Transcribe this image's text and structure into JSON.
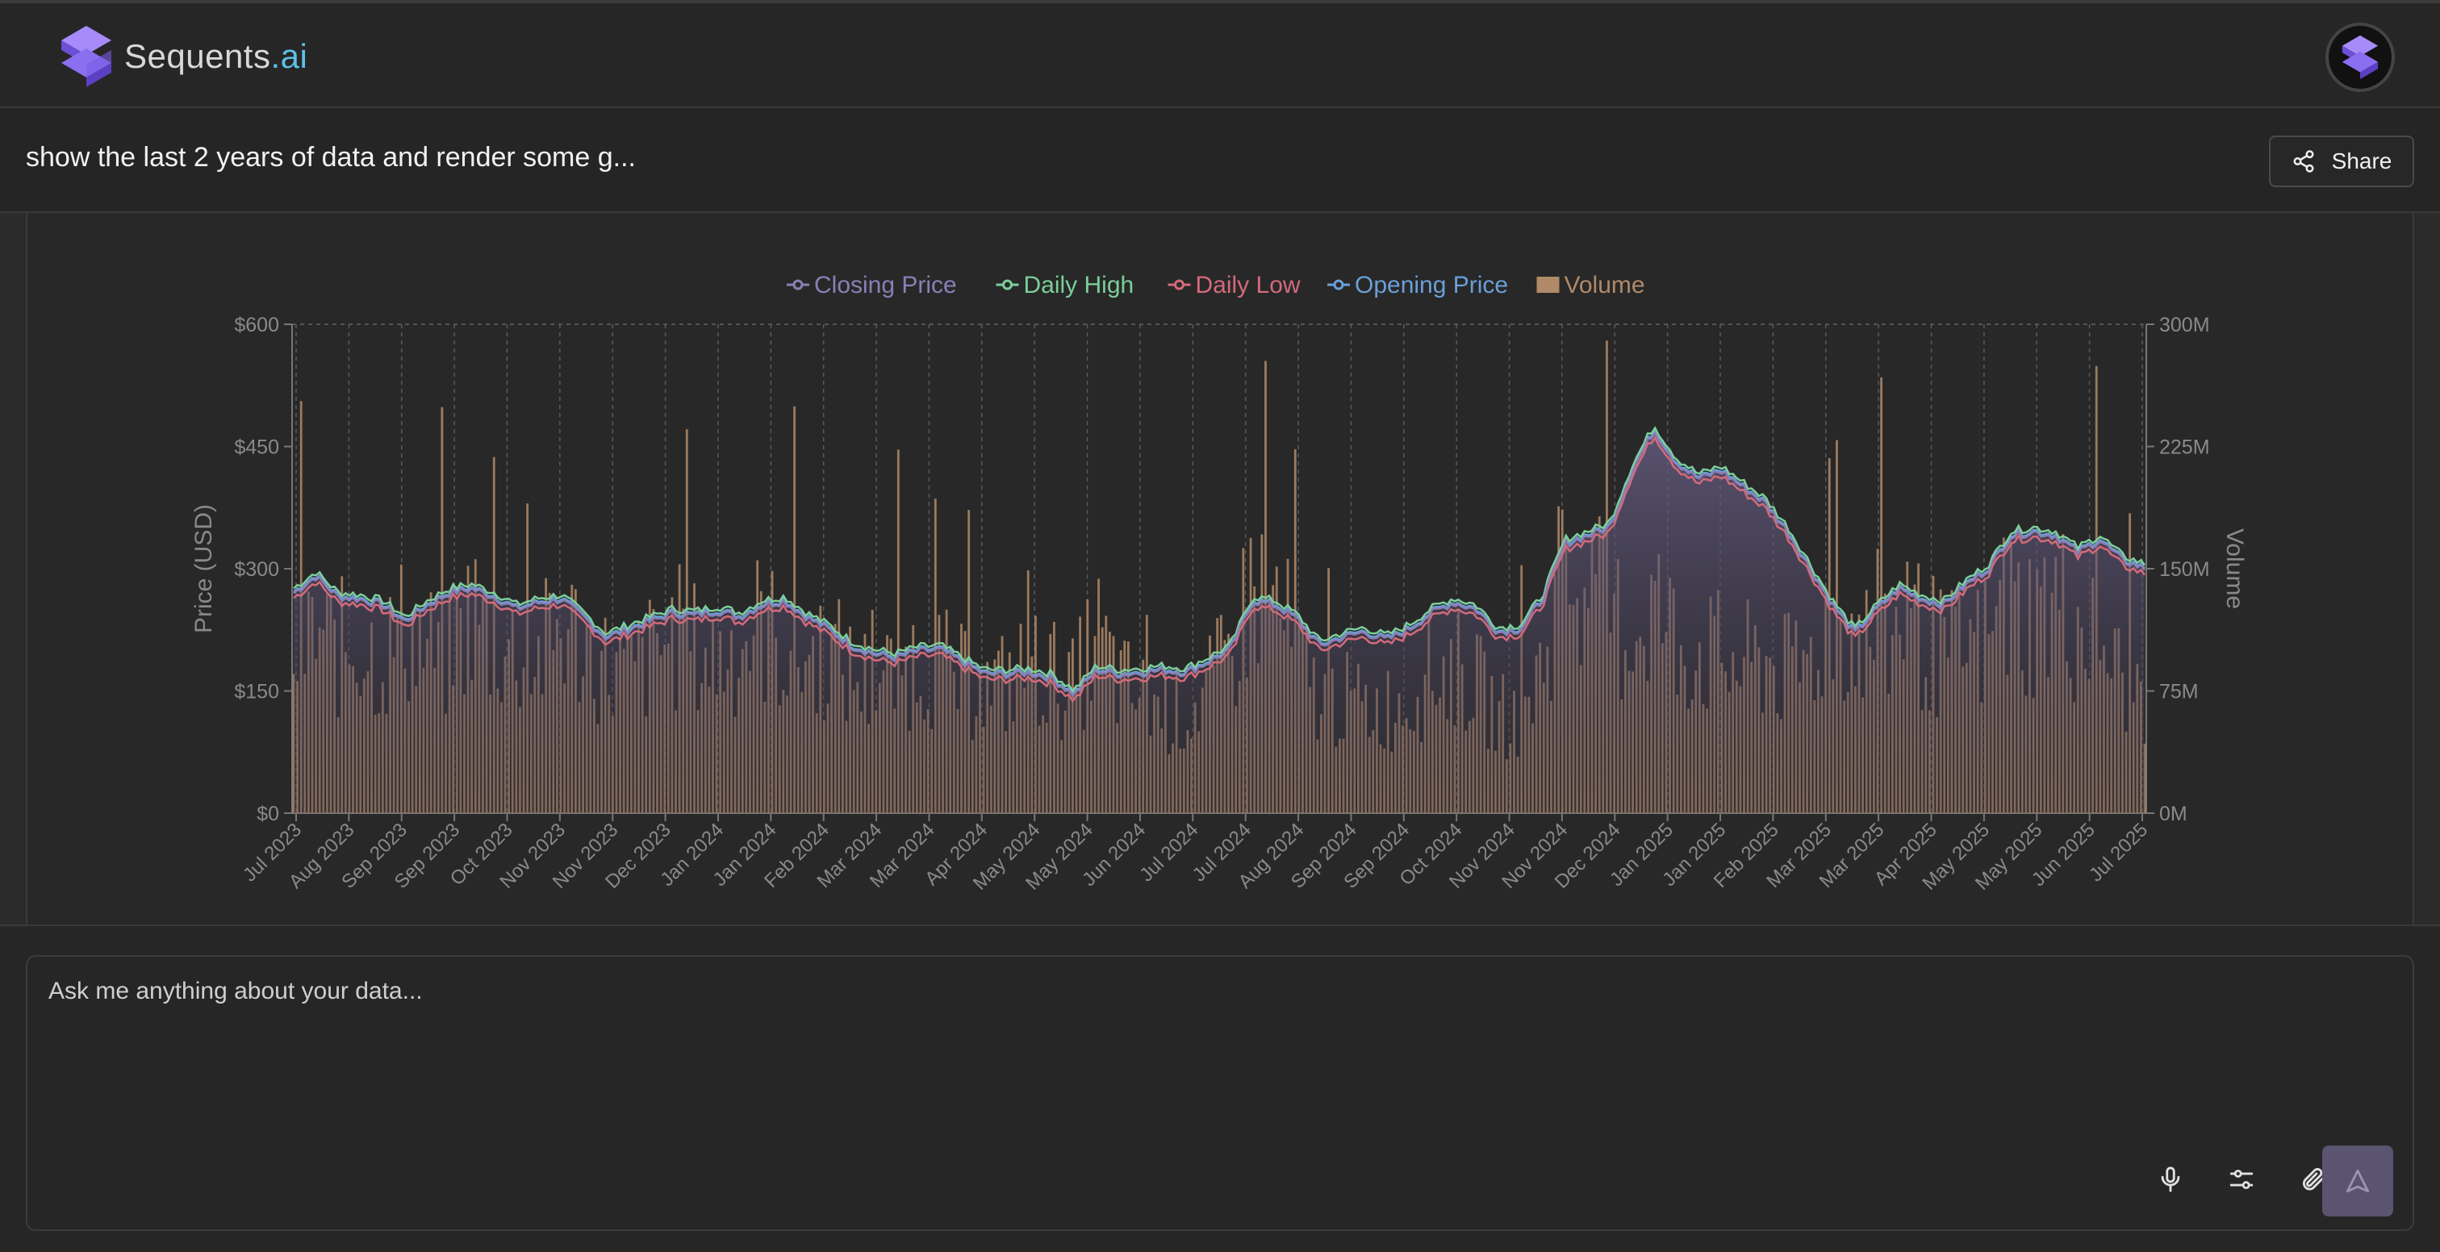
{
  "app": {
    "brand_main": "Sequents",
    "brand_suffix": ".ai"
  },
  "conversation": {
    "title": "show the last 2 years of data and render some g...",
    "share_label": "Share"
  },
  "input": {
    "placeholder": "Ask me anything about your data..."
  },
  "icons": {
    "mic": "microphone-icon",
    "settings": "sliders-icon",
    "attach": "paperclip-icon",
    "send": "send-icon",
    "share": "share-icon"
  },
  "colors": {
    "closing": "#8a7fb5",
    "high": "#7ccf9a",
    "low": "#d46a7a",
    "opening": "#6a9fd8",
    "volume": "#b08a68",
    "area": "#4a4560"
  },
  "chart_data": {
    "type": "line",
    "legend": [
      "Closing Price",
      "Daily High",
      "Daily Low",
      "Opening Price",
      "Volume"
    ],
    "y_label": "Price (USD)",
    "y2_label": "Volume",
    "y_ticks": [
      "$0",
      "$150",
      "$300",
      "$450",
      "$600"
    ],
    "y2_ticks": [
      "0M",
      "75M",
      "150M",
      "225M",
      "300M"
    ],
    "ylim": [
      0,
      600
    ],
    "y2lim": [
      0,
      300
    ],
    "x_ticks": [
      "Jul 2023",
      "Aug 2023",
      "Sep 2023",
      "Sep 2023",
      "Oct 2023",
      "Nov 2023",
      "Nov 2023",
      "Dec 2023",
      "Jan 2024",
      "Jan 2024",
      "Feb 2024",
      "Mar 2024",
      "Mar 2024",
      "Apr 2024",
      "May 2024",
      "May 2024",
      "Jun 2024",
      "Jul 2024",
      "Jul 2024",
      "Aug 2024",
      "Sep 2024",
      "Sep 2024",
      "Oct 2024",
      "Nov 2024",
      "Nov 2024",
      "Dec 2024",
      "Jan 2025",
      "Jan 2025",
      "Feb 2025",
      "Mar 2025",
      "Mar 2025",
      "Apr 2025",
      "May 2025",
      "May 2025",
      "Jun 2025",
      "Jul 2025"
    ],
    "closing_price": [
      270,
      290,
      265,
      262,
      255,
      235,
      255,
      270,
      275,
      265,
      250,
      258,
      262,
      240,
      215,
      225,
      235,
      245,
      242,
      248,
      240,
      255,
      260,
      240,
      225,
      205,
      195,
      190,
      198,
      200,
      185,
      170,
      170,
      172,
      165,
      145,
      175,
      170,
      172,
      175,
      172,
      185,
      200,
      260,
      255,
      238,
      205,
      215,
      222,
      212,
      225,
      245,
      258,
      250,
      222,
      225,
      262,
      330,
      340,
      350,
      420,
      470,
      430,
      410,
      420,
      400,
      380,
      345,
      300,
      255,
      220,
      250,
      275,
      262,
      255,
      280,
      300,
      340,
      345,
      340,
      320,
      335,
      310,
      300
    ],
    "volume": [
      95,
      110,
      100,
      105,
      95,
      115,
      100,
      95,
      125,
      105,
      100,
      95,
      115,
      105,
      90,
      85,
      95,
      110,
      100,
      95,
      105,
      115,
      100,
      95,
      100,
      85,
      80,
      85,
      95,
      90,
      80,
      75,
      80,
      90,
      85,
      75,
      110,
      80,
      70,
      65,
      60,
      75,
      95,
      140,
      130,
      95,
      70,
      70,
      65,
      65,
      70,
      85,
      90,
      80,
      60,
      60,
      90,
      150,
      135,
      120,
      110,
      130,
      105,
      100,
      95,
      90,
      95,
      85,
      95,
      120,
      110,
      100,
      115,
      110,
      95,
      100,
      105,
      125,
      120,
      130,
      115,
      110,
      80,
      75
    ]
  }
}
